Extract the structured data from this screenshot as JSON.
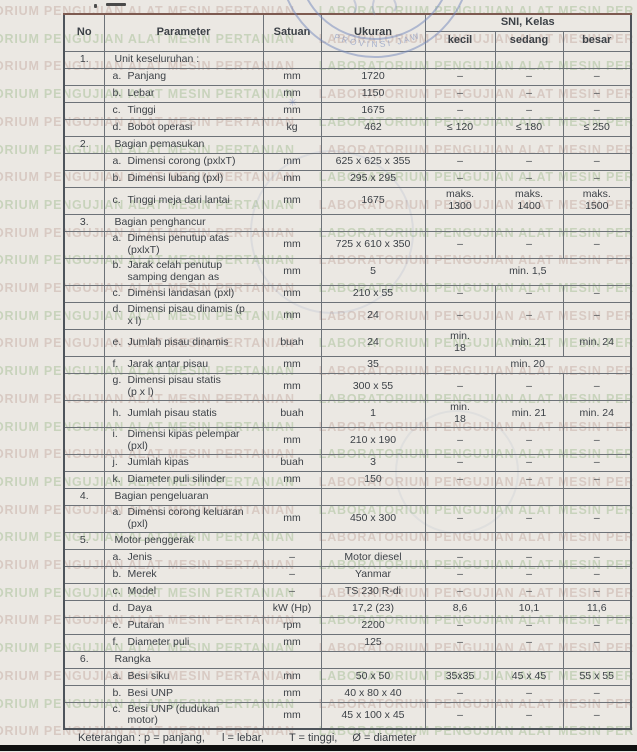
{
  "page": {
    "watermark": {
      "part1": "ORIUM PENGUJIAN ALAT MESIN PERTANIAN",
      "part2": "LABORATORIUM PENGUJIAN ALAT MESIN PER",
      "color_pink": "#d5c5be",
      "color_green": "#c3d0b6",
      "line_count": 27
    },
    "stamp": {
      "text": "PROVINSI JAWA",
      "color": "#7388bd",
      "star": "✳"
    }
  },
  "table": {
    "headers": {
      "no": "No",
      "parameter": "Parameter",
      "satuan": "Satuan",
      "ukuran": "Ukuran",
      "sni_group": "SNI, Kelas",
      "kecil": "kecil",
      "sedang": "sedang",
      "besar": "besar"
    },
    "rows": [
      {
        "no": "1.",
        "section": true,
        "param": "Unit keseluruhan :"
      },
      {
        "letter": "a.",
        "param": "Panjang",
        "satuan": "mm",
        "ukuran": "1720",
        "kecil": "–",
        "sedang": "–",
        "besar": "–"
      },
      {
        "letter": "b.",
        "param": "Lebar",
        "satuan": "mm",
        "ukuran": "1150",
        "kecil": "–",
        "sedang": "–",
        "besar": "–"
      },
      {
        "letter": "c.",
        "param": "Tinggi",
        "satuan": "mm",
        "ukuran": "1675",
        "kecil": "–",
        "sedang": "–",
        "besar": "–"
      },
      {
        "letter": "d.",
        "param": "Bobot operasi",
        "satuan": "kg",
        "ukuran": "462",
        "kecil": "≤ 120",
        "sedang": "≤ 180",
        "besar": "≤ 250"
      },
      {
        "no": "2.",
        "section": true,
        "param": "Bagian pemasukan",
        "red_top": true
      },
      {
        "letter": "a.",
        "param": "Dimensi corong (pxlxT)",
        "satuan": "mm",
        "ukuran": "625 x 625 x 355",
        "kecil": "–",
        "sedang": "–",
        "besar": "–"
      },
      {
        "letter": "b.",
        "param": "Dimensi lubang (pxl)",
        "satuan": "mm",
        "ukuran": "295 x 295",
        "kecil": "–",
        "sedang": "–",
        "besar": "–"
      },
      {
        "letter": "c.",
        "param": "Tinggi meja dari lantai",
        "satuan": "mm",
        "ukuran": "1675",
        "kecil": "maks.\n1300",
        "sedang": "maks.\n1400",
        "besar": "maks.\n1500",
        "tall": true
      },
      {
        "no": "3.",
        "section": true,
        "param": "Bagian penghancur"
      },
      {
        "letter": "a.",
        "param": "Dimensi penutup atas\n(pxlxT)",
        "satuan": "mm",
        "ukuran": "725 x 610 x 350",
        "kecil": "–",
        "sedang": "–",
        "besar": "–",
        "tall": true
      },
      {
        "letter": "b.",
        "param": "Jarak celah penutup\nsamping dengan as",
        "satuan": "mm",
        "ukuran": "5",
        "sni_merged": "min. 1,5",
        "tall": true
      },
      {
        "letter": "c.",
        "param": "Dimensi landasan (pxl)",
        "satuan": "mm",
        "ukuran": "210 x 55",
        "kecil": "–",
        "sedang": "–",
        "besar": "–"
      },
      {
        "letter": "d.",
        "param": "Dimensi pisau dinamis (p\nx l)",
        "satuan": "mm",
        "ukuran": "24",
        "kecil": "–",
        "sedang": "–",
        "besar": "–",
        "tall": true
      },
      {
        "letter": "e.",
        "param": "Jumlah pisau dinamis",
        "satuan": "buah",
        "ukuran": "24",
        "kecil": "min.\n18",
        "sedang": "min. 21",
        "besar": "min. 24",
        "tall": true
      },
      {
        "letter": "f.",
        "param": "Jarak antar pisau",
        "satuan": "mm",
        "ukuran": "35",
        "sni_merged": "min. 20",
        "red_top": true
      },
      {
        "letter": "g.",
        "param": "Dimensi pisau statis\n(p x l)",
        "satuan": "mm",
        "ukuran": "300 x 55",
        "kecil": "–",
        "sedang": "–",
        "besar": "–",
        "tall": true
      },
      {
        "letter": "h.",
        "param": "Jumlah pisau statis",
        "satuan": "buah",
        "ukuran": "1",
        "kecil": "min.\n18",
        "sedang": "min. 21",
        "besar": "min. 24",
        "tall": true
      },
      {
        "letter": "i.",
        "param": "Dimensi kipas pelempar\n(pxl)",
        "satuan": "mm",
        "ukuran": "210 x 190",
        "kecil": "–",
        "sedang": "–",
        "besar": "–",
        "tall": true
      },
      {
        "letter": "j.",
        "param": "Jumlah kipas",
        "satuan": "buah",
        "ukuran": "3",
        "kecil": "–",
        "sedang": "–",
        "besar": "–"
      },
      {
        "letter": "k.",
        "param": "Diameter puli silinder",
        "satuan": "mm",
        "ukuran": "150",
        "kecil": "–",
        "sedang": "–",
        "besar": "–"
      },
      {
        "no": "4.",
        "section": true,
        "param": "Bagian pengeluaran"
      },
      {
        "letter": "a.",
        "param": "Dimensi corong keluaran\n(pxl)",
        "satuan": "mm",
        "ukuran": "450 x 300",
        "kecil": "–",
        "sedang": "–",
        "besar": "–",
        "tall": true
      },
      {
        "no": "5.",
        "section": true,
        "param": "Motor penggerak"
      },
      {
        "letter": "a.",
        "param": "Jenis",
        "satuan": "–",
        "ukuran": "Motor diesel",
        "kecil": "–",
        "sedang": "–",
        "besar": "–"
      },
      {
        "letter": "b.",
        "param": "Merek",
        "satuan": "–",
        "ukuran": "Yanmar",
        "kecil": "–",
        "sedang": "–",
        "besar": "–"
      },
      {
        "letter": "c.",
        "param": "Model",
        "satuan": "–",
        "ukuran": "TS 230 R-di",
        "kecil": "–",
        "sedang": "–",
        "besar": "–"
      },
      {
        "letter": "d.",
        "param": "Daya",
        "satuan": "kW (Hp)",
        "ukuran": "17,2 (23)",
        "kecil": "8,6",
        "sedang": "10,1",
        "besar": "11,6"
      },
      {
        "letter": "e.",
        "param": "Putaran",
        "satuan": "rpm",
        "ukuran": "2200",
        "kecil": "–",
        "sedang": "–",
        "besar": "–"
      },
      {
        "letter": "f.",
        "param": "Diameter puli",
        "satuan": "mm",
        "ukuran": "125",
        "kecil": "–",
        "sedang": "–",
        "besar": "–"
      },
      {
        "no": "6.",
        "section": true,
        "param": "Rangka"
      },
      {
        "letter": "a.",
        "param": "Besi siku",
        "satuan": "mm",
        "ukuran": "50 x 50",
        "kecil": "35x35",
        "sedang": "45 x 45",
        "besar": "55 x 55"
      },
      {
        "letter": "b.",
        "param": "Besi UNP",
        "satuan": "mm",
        "ukuran": "40 x 80 x 40",
        "kecil": "–",
        "sedang": "–",
        "besar": "–"
      },
      {
        "letter": "c.",
        "param": "Besi UNP (dudukan\nmotor)",
        "satuan": "mm",
        "ukuran": "45 x 100 x 45",
        "kecil": "–",
        "sedang": "–",
        "besar": "–",
        "tall": true
      }
    ]
  },
  "footer": {
    "parts": [
      "Keterangan : p = panjang,",
      "l = lebar,",
      "T = tinggi,",
      "Ø = diameter"
    ]
  }
}
